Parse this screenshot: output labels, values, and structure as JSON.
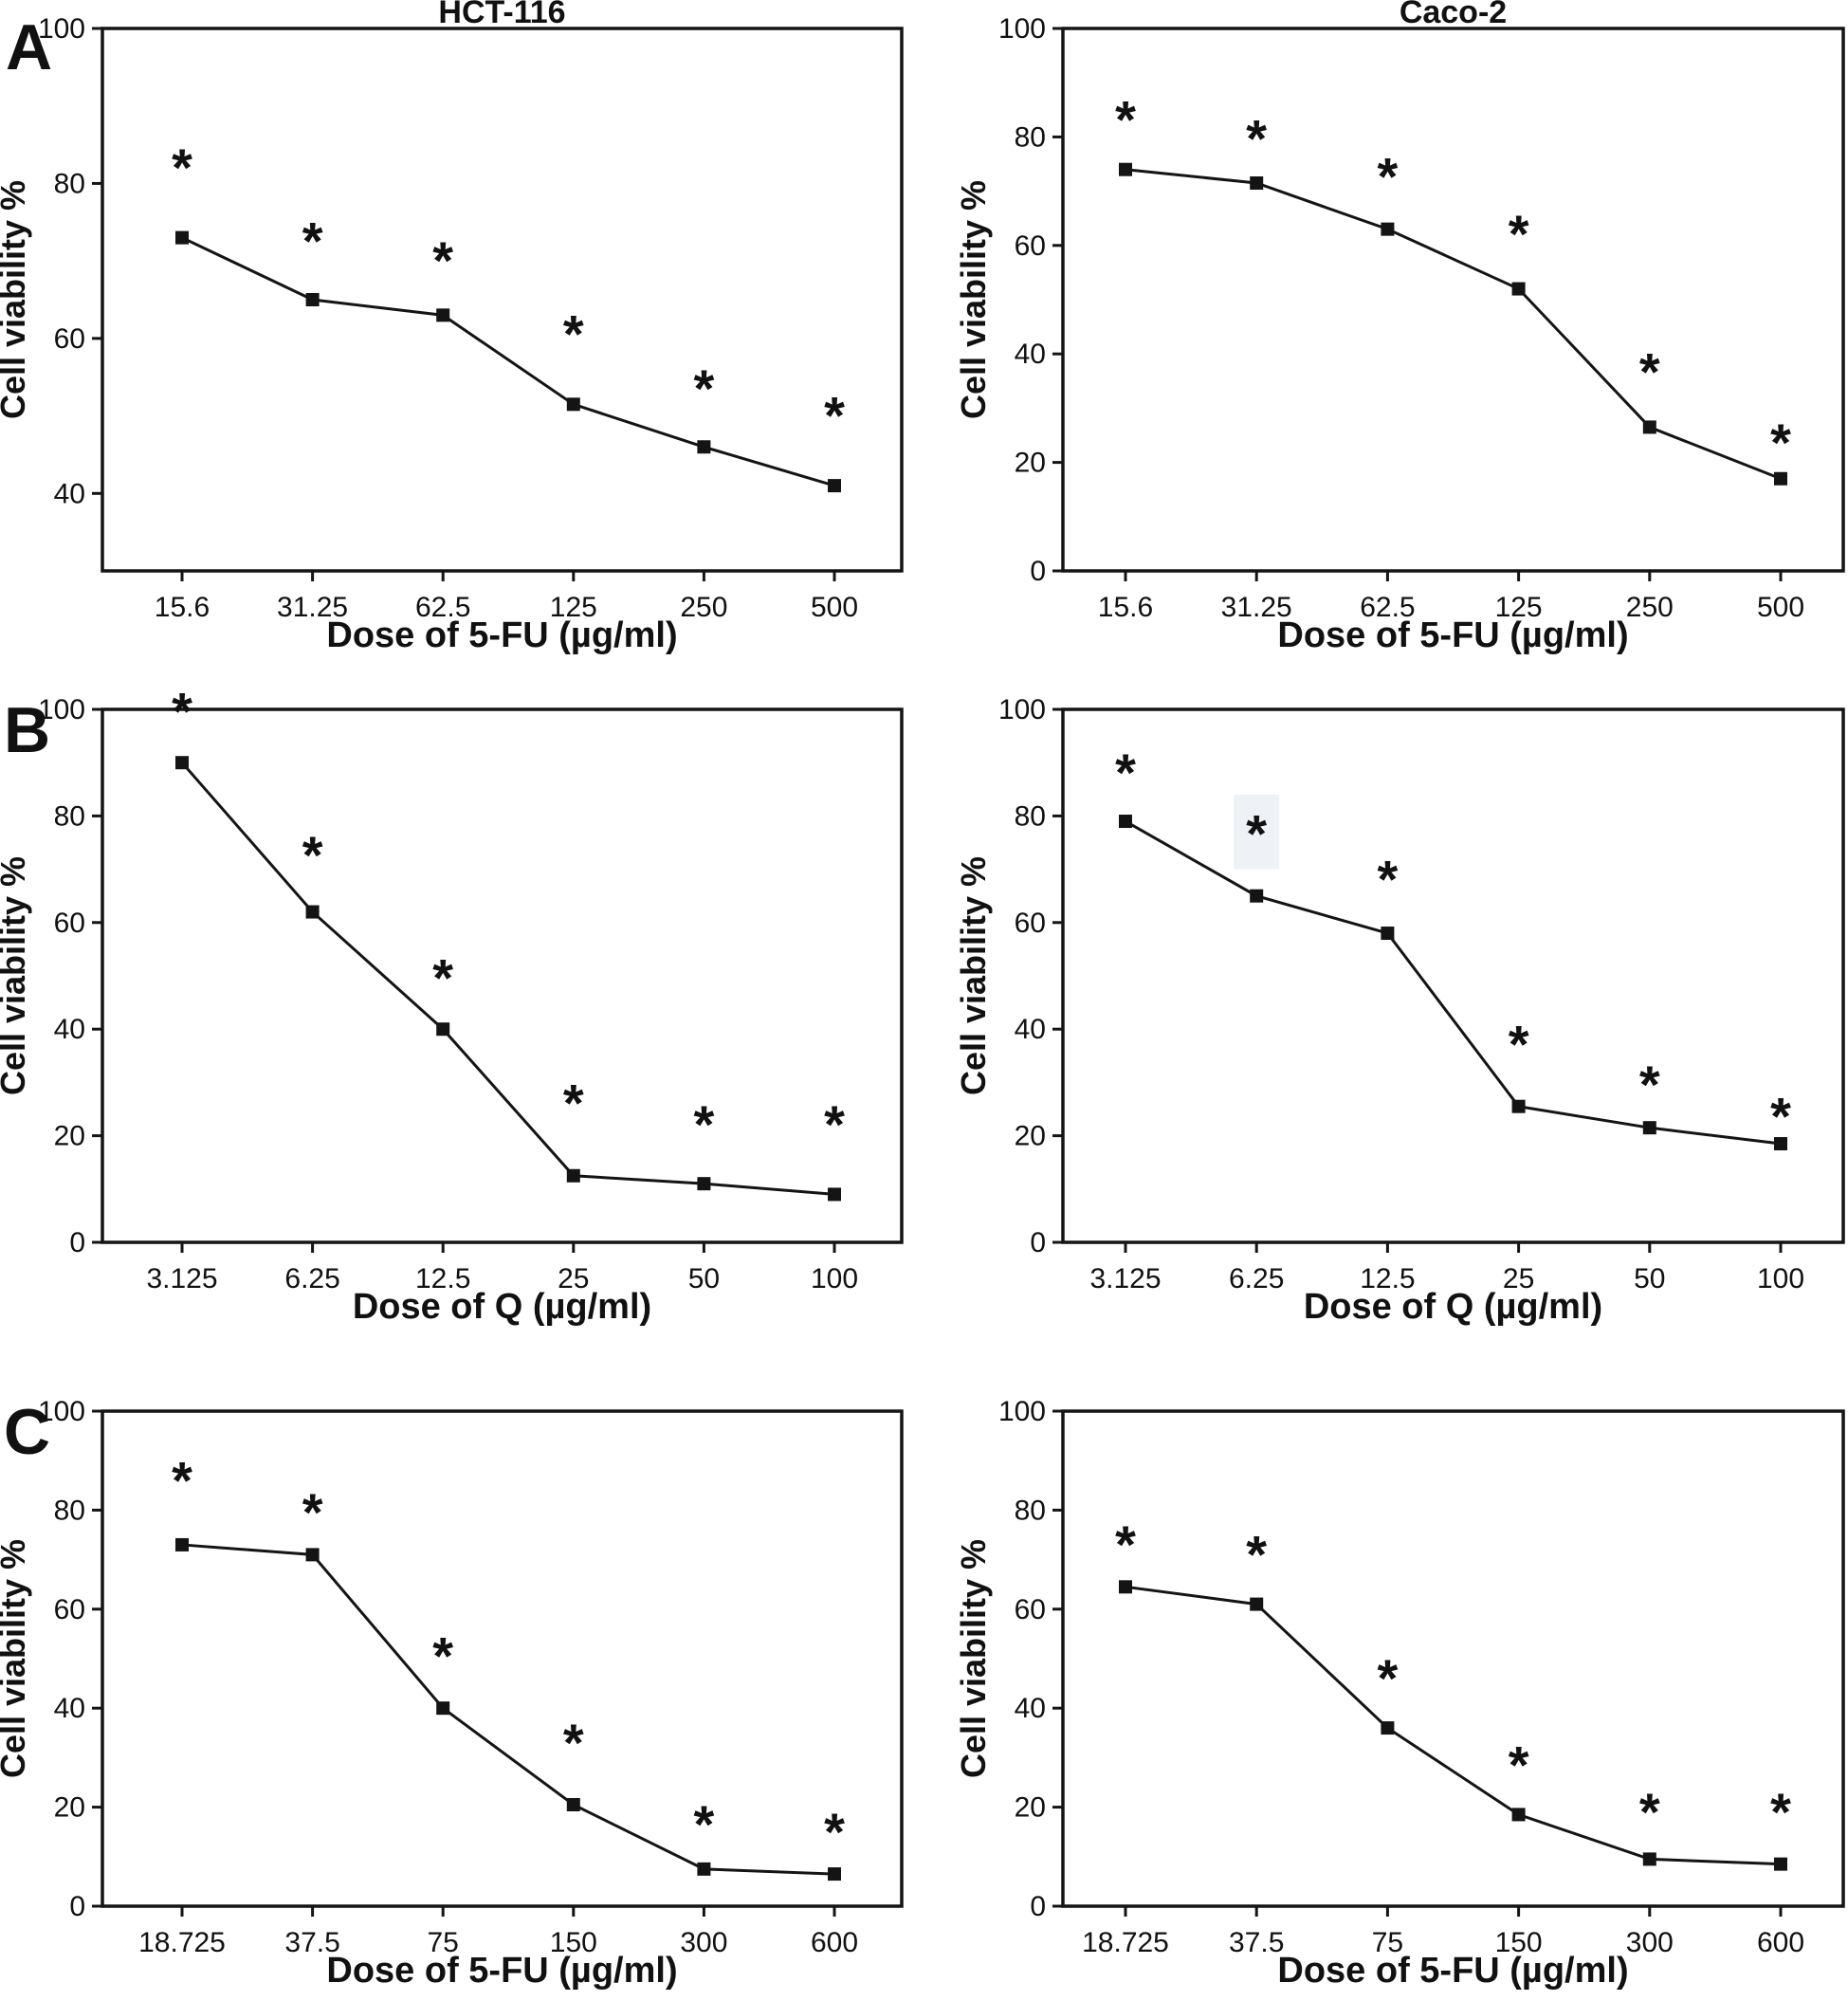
{
  "figure": {
    "panel_labels": [
      "A",
      "B",
      "C"
    ],
    "column_titles": [
      "HCT-116",
      "Caco-2"
    ],
    "ylabel": "Cell viability %",
    "significance_marker": "*",
    "colors": {
      "line": "#141414",
      "text": "#111111",
      "background": "#ffffff",
      "highlight": "#eef1f6"
    }
  },
  "chart_data": [
    {
      "id": "panel-a-hct116",
      "type": "line",
      "panel": "A",
      "cell_line": "HCT-116",
      "title": "HCT-116",
      "xlabel": "Dose of 5-FU (µg/ml)",
      "ylabel": "Cell viability %",
      "categories": [
        "15.6",
        "31.25",
        "62.5",
        "125",
        "250",
        "500"
      ],
      "values": [
        73,
        65,
        63,
        51.5,
        46,
        41
      ],
      "asterisk_y": [
        83,
        73.5,
        71,
        61.5,
        54.5,
        51
      ],
      "ylim": [
        30,
        100
      ],
      "yticks": [
        40,
        60,
        80,
        100
      ],
      "grid": false,
      "legend": "none"
    },
    {
      "id": "panel-a-caco2",
      "type": "line",
      "panel": "A",
      "cell_line": "Caco-2",
      "title": "Caco-2",
      "xlabel": "Dose of 5-FU (µg/ml)",
      "ylabel": "Cell viability %",
      "categories": [
        "15.6",
        "31.25",
        "62.5",
        "125",
        "250",
        "500"
      ],
      "values": [
        74,
        71.5,
        63,
        52,
        26.5,
        17
      ],
      "asterisk_y": [
        84.5,
        81,
        74,
        63.5,
        38,
        25
      ],
      "ylim": [
        0,
        100
      ],
      "yticks": [
        0,
        20,
        40,
        60,
        80,
        100
      ],
      "grid": false,
      "legend": "none"
    },
    {
      "id": "panel-b-hct116",
      "type": "line",
      "panel": "B",
      "cell_line": "HCT-116",
      "title": "",
      "xlabel": "Dose of Q (µg/ml)",
      "ylabel": "Cell viability %",
      "categories": [
        "3.125",
        "6.25",
        "12.5",
        "25",
        "50",
        "100"
      ],
      "values": [
        90,
        62,
        40,
        12.5,
        11,
        9
      ],
      "asterisk_y": [
        101,
        74,
        51,
        27.5,
        23.5,
        23.5
      ],
      "ylim": [
        0,
        100
      ],
      "yticks": [
        0,
        20,
        40,
        60,
        80,
        100
      ],
      "grid": false,
      "legend": "none"
    },
    {
      "id": "panel-b-caco2",
      "type": "line",
      "panel": "B",
      "cell_line": "Caco-2",
      "title": "",
      "xlabel": "Dose of Q (µg/ml)",
      "ylabel": "Cell viability %",
      "categories": [
        "3.125",
        "6.25",
        "12.5",
        "25",
        "50",
        "100"
      ],
      "values": [
        79,
        65,
        58,
        25.5,
        21.5,
        18.5
      ],
      "asterisk_y": [
        89.5,
        78,
        69.5,
        38.5,
        31,
        25
      ],
      "ylim": [
        0,
        100
      ],
      "yticks": [
        0,
        20,
        40,
        60,
        80,
        100
      ],
      "grid": false,
      "legend": "none",
      "highlight": {
        "tick_index": 1,
        "y_top": 84,
        "y_bottom": 70
      }
    },
    {
      "id": "panel-c-hct116",
      "type": "line",
      "panel": "C",
      "cell_line": "HCT-116",
      "title": "",
      "xlabel": "Dose of 5-FU (µg/ml)",
      "ylabel": "Cell viability %",
      "categories": [
        "18.725",
        "37.5",
        "75",
        "150",
        "300",
        "600"
      ],
      "values": [
        73,
        71,
        40,
        20.5,
        7.5,
        6.5
      ],
      "asterisk_y": [
        87.5,
        81,
        52,
        34.5,
        18,
        16.5
      ],
      "ylim": [
        0,
        100
      ],
      "yticks": [
        0,
        20,
        40,
        60,
        80,
        100
      ],
      "grid": false,
      "legend": "none"
    },
    {
      "id": "panel-c-caco2",
      "type": "line",
      "panel": "C",
      "cell_line": "Caco-2",
      "title": "",
      "xlabel": "Dose of 5-FU (µg/ml)",
      "ylabel": "Cell viability %",
      "categories": [
        "18.725",
        "37.5",
        "75",
        "150",
        "300",
        "600"
      ],
      "values": [
        64.5,
        61,
        36,
        18.5,
        9.5,
        8.5
      ],
      "asterisk_y": [
        74.5,
        72.5,
        47.5,
        30,
        20.5,
        20.5
      ],
      "ylim": [
        0,
        100
      ],
      "yticks": [
        0,
        20,
        40,
        60,
        80,
        100
      ],
      "grid": false,
      "legend": "none"
    }
  ]
}
